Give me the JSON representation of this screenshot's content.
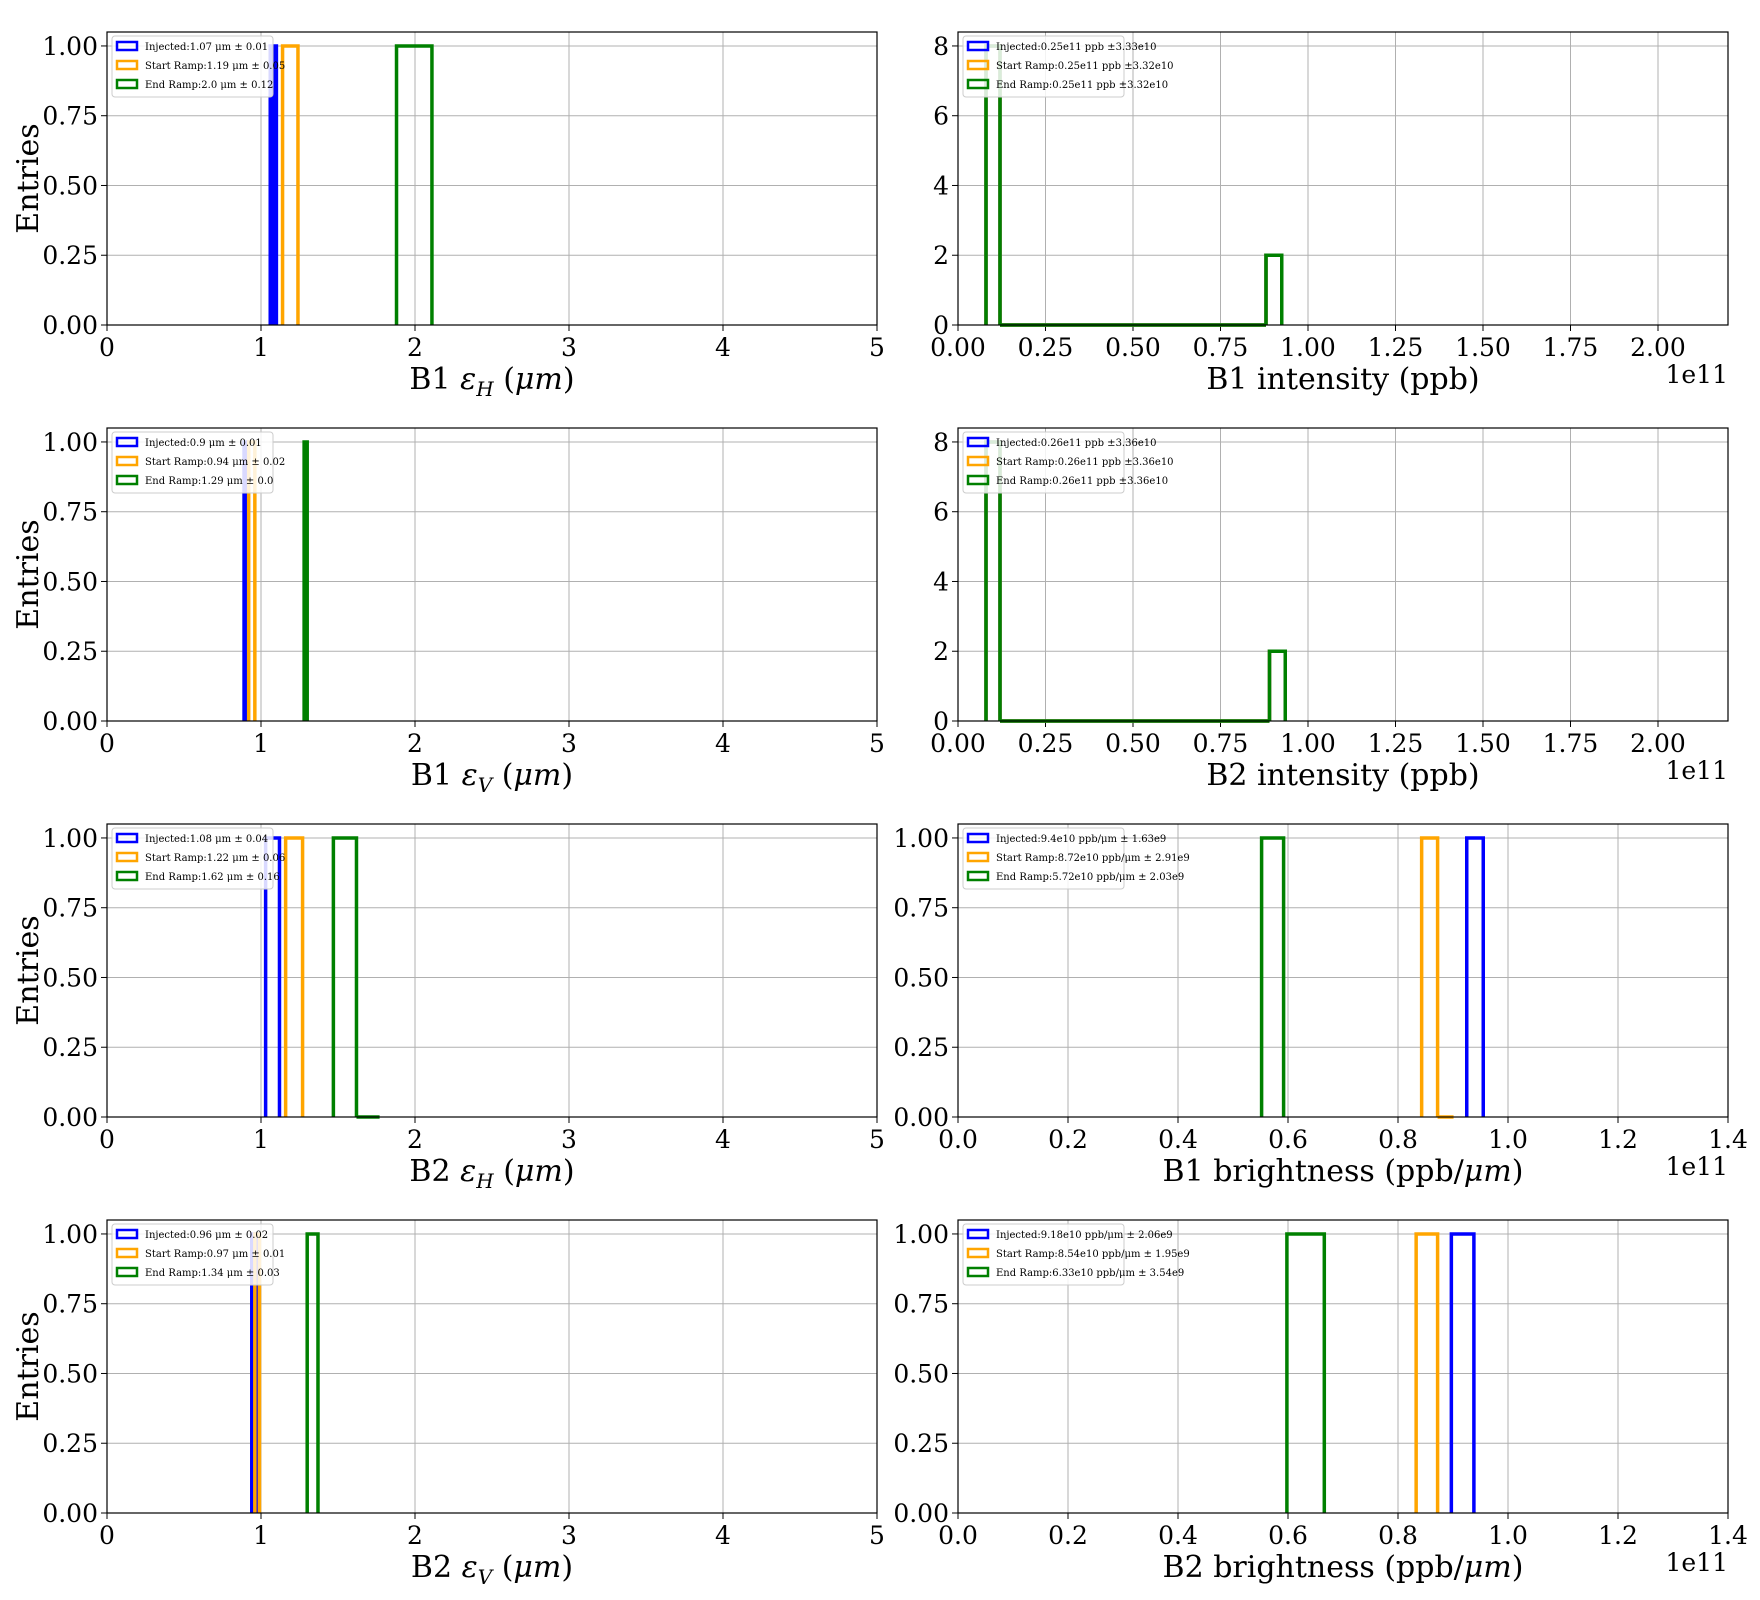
{
  "colors": {
    "Injected": "#0000ff",
    "Start Ramp": "#ffa500",
    "End Ramp": "#008000",
    "grid": "#b0b0b0"
  },
  "chart_data": [
    {
      "type": "bar",
      "histtype": "step",
      "xlabel": "B1 εH (μm)",
      "ylabel": "Entries",
      "xlim": [
        0,
        5
      ],
      "ylim": [
        0,
        1.05
      ],
      "xticks": [
        "0",
        "1",
        "2",
        "3",
        "4",
        "5"
      ],
      "yticks": [
        "0.00",
        "0.25",
        "0.50",
        "0.75",
        "1.00"
      ],
      "offset": "",
      "grid": true,
      "legend_loc": "upper left",
      "series": [
        {
          "name": "Injected:1.07 μm ± 0.01",
          "bins": [
            [
              1.06,
              1.08,
              1
            ],
            [
              1.08,
              1.1,
              1
            ]
          ]
        },
        {
          "name": "Start Ramp:1.19 μm ± 0.05",
          "bins": [
            [
              1.14,
              1.24,
              1
            ]
          ]
        },
        {
          "name": "End Ramp:2.0 μm ± 0.12",
          "bins": [
            [
              1.88,
              2.11,
              1
            ]
          ]
        }
      ]
    },
    {
      "type": "bar",
      "histtype": "step",
      "xlabel": "B1 intensity (ppb)",
      "ylabel": "",
      "xlim": [
        0,
        2.2
      ],
      "ylim": [
        0,
        8.4
      ],
      "xticks": [
        "0.00",
        "0.25",
        "0.50",
        "0.75",
        "1.00",
        "1.25",
        "1.50",
        "1.75",
        "2.00"
      ],
      "yticks": [
        "0",
        "2",
        "4",
        "6",
        "8"
      ],
      "offset": "1e11",
      "grid": true,
      "legend_loc": "upper left",
      "series": [
        {
          "name": "Injected:0.25e11 ppb ±3.33e10",
          "bins": [
            [
              0.08,
              0.12,
              8
            ],
            [
              0.12,
              0.88,
              0
            ],
            [
              0.88,
              0.925,
              2
            ]
          ]
        },
        {
          "name": "Start Ramp:0.25e11 ppb ±3.32e10",
          "bins": [
            [
              0.08,
              0.12,
              8
            ],
            [
              0.12,
              0.88,
              0
            ],
            [
              0.88,
              0.925,
              2
            ]
          ]
        },
        {
          "name": "End Ramp:0.25e11 ppb ±3.32e10",
          "bins": [
            [
              0.08,
              0.12,
              8
            ],
            [
              0.12,
              0.88,
              0
            ],
            [
              0.88,
              0.925,
              2
            ]
          ]
        }
      ]
    },
    {
      "type": "bar",
      "histtype": "step",
      "xlabel": "B1 εV (μm)",
      "ylabel": "Entries",
      "xlim": [
        0,
        5
      ],
      "ylim": [
        0,
        1.05
      ],
      "xticks": [
        "0",
        "1",
        "2",
        "3",
        "4",
        "5"
      ],
      "yticks": [
        "0.00",
        "0.25",
        "0.50",
        "0.75",
        "1.00"
      ],
      "offset": "",
      "grid": true,
      "legend_loc": "upper left",
      "series": [
        {
          "name": "Injected:0.9 μm ± 0.01",
          "bins": [
            [
              0.89,
              0.91,
              1
            ]
          ]
        },
        {
          "name": "Start Ramp:0.94 μm ± 0.02",
          "bins": [
            [
              0.92,
              0.96,
              1
            ]
          ]
        },
        {
          "name": "End Ramp:1.29 μm ± 0.0",
          "bins": [
            [
              1.28,
              1.3,
              1
            ]
          ]
        }
      ]
    },
    {
      "type": "bar",
      "histtype": "step",
      "xlabel": "B2 intensity (ppb)",
      "ylabel": "",
      "xlim": [
        0,
        2.2
      ],
      "ylim": [
        0,
        8.4
      ],
      "xticks": [
        "0.00",
        "0.25",
        "0.50",
        "0.75",
        "1.00",
        "1.25",
        "1.50",
        "1.75",
        "2.00"
      ],
      "yticks": [
        "0",
        "2",
        "4",
        "6",
        "8"
      ],
      "offset": "1e11",
      "grid": true,
      "legend_loc": "upper left",
      "series": [
        {
          "name": "Injected:0.26e11 ppb ±3.36e10",
          "bins": [
            [
              0.08,
              0.12,
              8
            ],
            [
              0.12,
              0.89,
              0
            ],
            [
              0.89,
              0.935,
              2
            ]
          ]
        },
        {
          "name": "Start Ramp:0.26e11 ppb ±3.36e10",
          "bins": [
            [
              0.08,
              0.12,
              8
            ],
            [
              0.12,
              0.89,
              0
            ],
            [
              0.89,
              0.935,
              2
            ]
          ]
        },
        {
          "name": "End Ramp:0.26e11 ppb ±3.36e10",
          "bins": [
            [
              0.08,
              0.12,
              8
            ],
            [
              0.12,
              0.89,
              0
            ],
            [
              0.89,
              0.935,
              2
            ]
          ]
        }
      ]
    },
    {
      "type": "bar",
      "histtype": "step",
      "xlabel": "B2 εH (μm)",
      "ylabel": "Entries",
      "xlim": [
        0,
        5
      ],
      "ylim": [
        0,
        1.05
      ],
      "xticks": [
        "0",
        "1",
        "2",
        "3",
        "4",
        "5"
      ],
      "yticks": [
        "0.00",
        "0.25",
        "0.50",
        "0.75",
        "1.00"
      ],
      "offset": "",
      "grid": true,
      "legend_loc": "upper left",
      "series": [
        {
          "name": "Injected:1.08 μm ± 0.04",
          "bins": [
            [
              1.03,
              1.12,
              1
            ]
          ]
        },
        {
          "name": "Start Ramp:1.22 μm ± 0.06",
          "bins": [
            [
              1.16,
              1.27,
              1
            ]
          ]
        },
        {
          "name": "End Ramp:1.62 μm ± 0.16",
          "bins": [
            [
              1.47,
              1.62,
              1
            ],
            [
              1.62,
              1.77,
              0
            ]
          ]
        }
      ]
    },
    {
      "type": "bar",
      "histtype": "step",
      "xlabel": "B1 brightness (ppb/μm)",
      "ylabel": "",
      "xlim": [
        0,
        1.4
      ],
      "ylim": [
        0,
        1.05
      ],
      "xticks": [
        "0.0",
        "0.2",
        "0.4",
        "0.6",
        "0.8",
        "1.0",
        "1.2",
        "1.4"
      ],
      "yticks": [
        "0.00",
        "0.25",
        "0.50",
        "0.75",
        "1.00"
      ],
      "offset": "1e11",
      "grid": true,
      "legend_loc": "upper left",
      "series": [
        {
          "name": "Injected:9.4e10 ppb/μm ± 1.63e9",
          "bins": [
            [
              0.925,
              0.955,
              1
            ]
          ]
        },
        {
          "name": "Start Ramp:8.72e10 ppb/μm ± 2.91e9",
          "bins": [
            [
              0.843,
              0.872,
              1
            ],
            [
              0.872,
              0.901,
              0
            ]
          ]
        },
        {
          "name": "End Ramp:5.72e10 ppb/μm ± 2.03e9",
          "bins": [
            [
              0.552,
              0.592,
              1
            ]
          ]
        }
      ]
    },
    {
      "type": "bar",
      "histtype": "step",
      "xlabel": "B2 εV (μm)",
      "ylabel": "Entries",
      "xlim": [
        0,
        5
      ],
      "ylim": [
        0,
        1.05
      ],
      "xticks": [
        "0",
        "1",
        "2",
        "3",
        "4",
        "5"
      ],
      "yticks": [
        "0.00",
        "0.25",
        "0.50",
        "0.75",
        "1.00"
      ],
      "offset": "",
      "grid": true,
      "legend_loc": "upper left",
      "series": [
        {
          "name": "Injected:0.96 μm ± 0.02",
          "bins": [
            [
              0.94,
              0.98,
              1
            ]
          ]
        },
        {
          "name": "Start Ramp:0.97 μm ± 0.01",
          "bins": [
            [
              0.96,
              0.99,
              1
            ]
          ]
        },
        {
          "name": "End Ramp:1.34 μm ± 0.03",
          "bins": [
            [
              1.3,
              1.37,
              1
            ]
          ]
        }
      ]
    },
    {
      "type": "bar",
      "histtype": "step",
      "xlabel": "B2 brightness (ppb/μm)",
      "ylabel": "",
      "xlim": [
        0,
        1.4
      ],
      "ylim": [
        0,
        1.05
      ],
      "xticks": [
        "0.0",
        "0.2",
        "0.4",
        "0.6",
        "0.8",
        "1.0",
        "1.2",
        "1.4"
      ],
      "yticks": [
        "0.00",
        "0.25",
        "0.50",
        "0.75",
        "1.00"
      ],
      "offset": "1e11",
      "grid": true,
      "legend_loc": "upper left",
      "series": [
        {
          "name": "Injected:9.18e10 ppb/μm ± 2.06e9",
          "bins": [
            [
              0.897,
              0.938,
              1
            ]
          ]
        },
        {
          "name": "Start Ramp:8.54e10 ppb/μm ± 1.95e9",
          "bins": [
            [
              0.833,
              0.872,
              1
            ]
          ]
        },
        {
          "name": "End Ramp:6.33e10 ppb/μm ± 3.54e9",
          "bins": [
            [
              0.598,
              0.666,
              1
            ],
            [
              0.666,
              0.666,
              0
            ]
          ]
        }
      ]
    }
  ]
}
